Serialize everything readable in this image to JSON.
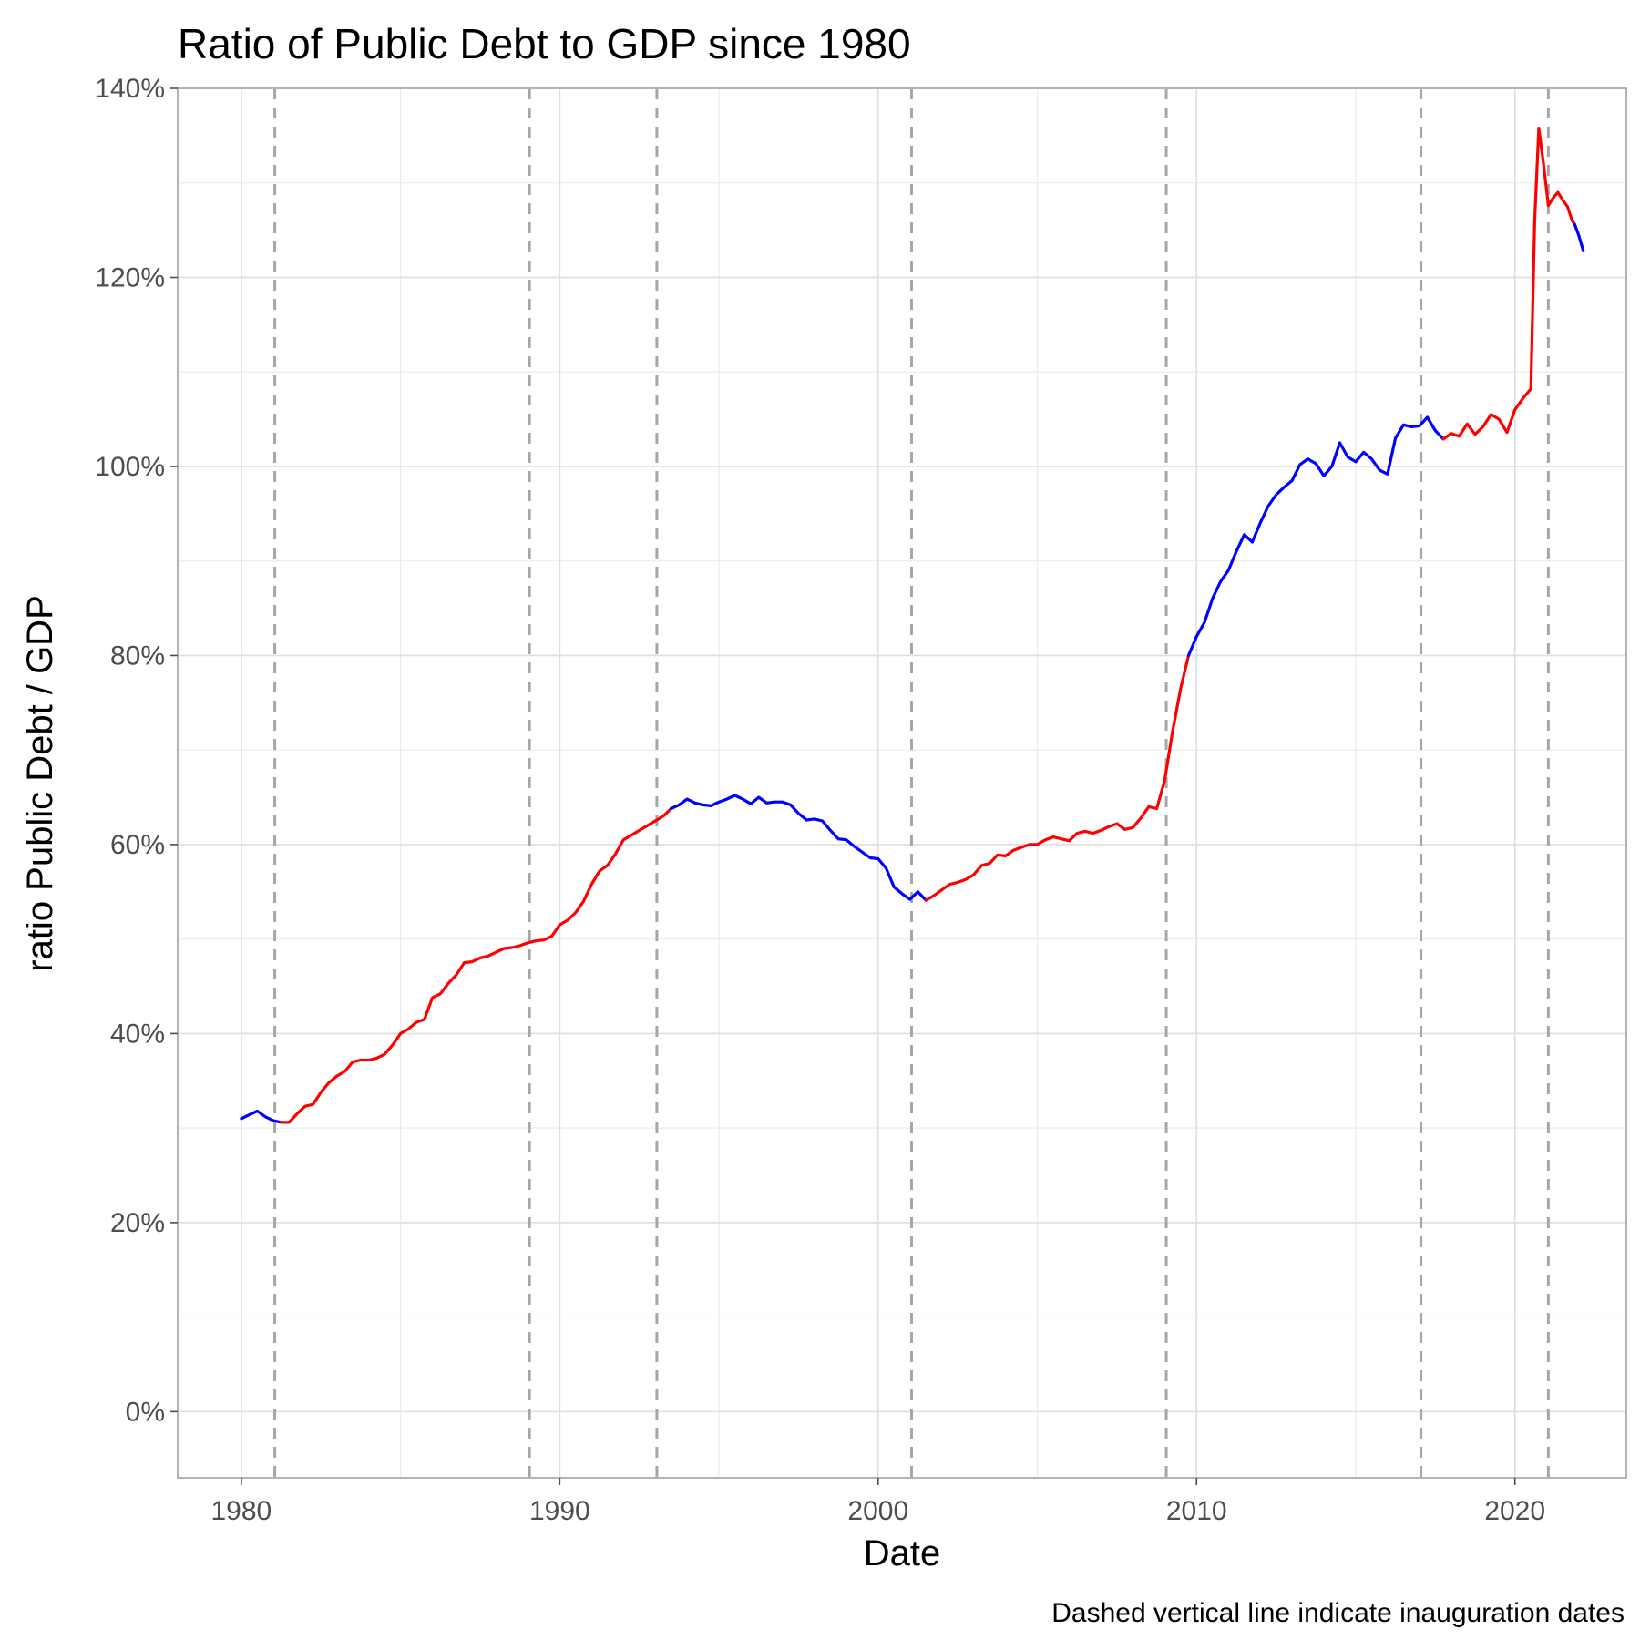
{
  "chart_data": {
    "type": "line",
    "title": "Ratio of Public Debt to GDP since 1980",
    "xlabel": "Date",
    "ylabel": "ratio Public Debt / GDP",
    "caption": "Dashed vertical line indicate inauguration dates",
    "xlim": [
      1978,
      2023.5
    ],
    "ylim": [
      -7,
      140
    ],
    "x_ticks": [
      1980,
      1990,
      2000,
      2010,
      2020
    ],
    "y_ticks": [
      0,
      20,
      40,
      60,
      80,
      100,
      120,
      140
    ],
    "y_tick_labels": [
      "0%",
      "20%",
      "40%",
      "60%",
      "80%",
      "100%",
      "120%",
      "140%"
    ],
    "grid": true,
    "vlines": [
      1981.05,
      1989.05,
      1993.05,
      2001.05,
      2009.05,
      2017.05,
      2021.05
    ],
    "colors": {
      "blue": "#0000ff",
      "red": "#ff0000",
      "vline": "#a6a6a6"
    },
    "series": [
      {
        "color": "blue",
        "points": [
          [
            1980.0,
            31.0
          ],
          [
            1980.25,
            31.4
          ],
          [
            1980.5,
            31.8
          ],
          [
            1980.75,
            31.2
          ],
          [
            1981.0,
            30.8
          ],
          [
            1981.25,
            30.6
          ]
        ]
      },
      {
        "color": "red",
        "points": [
          [
            1981.25,
            30.6
          ],
          [
            1981.5,
            30.6
          ],
          [
            1981.75,
            31.5
          ],
          [
            1982.0,
            32.3
          ],
          [
            1982.25,
            32.5
          ],
          [
            1982.5,
            33.8
          ],
          [
            1982.75,
            34.8
          ],
          [
            1983.0,
            35.5
          ],
          [
            1983.25,
            36.0
          ],
          [
            1983.5,
            37.0
          ],
          [
            1983.75,
            37.2
          ],
          [
            1984.0,
            37.2
          ],
          [
            1984.25,
            37.4
          ],
          [
            1984.5,
            37.8
          ],
          [
            1984.75,
            38.8
          ],
          [
            1985.0,
            40.0
          ],
          [
            1985.25,
            40.5
          ],
          [
            1985.5,
            41.2
          ],
          [
            1985.75,
            41.5
          ],
          [
            1986.0,
            43.8
          ],
          [
            1986.25,
            44.2
          ],
          [
            1986.5,
            45.3
          ],
          [
            1986.75,
            46.2
          ],
          [
            1987.0,
            47.5
          ],
          [
            1987.25,
            47.6
          ],
          [
            1987.5,
            48.0
          ],
          [
            1987.75,
            48.2
          ],
          [
            1988.0,
            48.6
          ],
          [
            1988.25,
            49.0
          ],
          [
            1988.5,
            49.1
          ],
          [
            1988.75,
            49.3
          ],
          [
            1989.0,
            49.6
          ],
          [
            1989.25,
            49.8
          ],
          [
            1989.5,
            49.9
          ],
          [
            1989.75,
            50.3
          ],
          [
            1990.0,
            51.5
          ],
          [
            1990.25,
            52.0
          ],
          [
            1990.5,
            52.8
          ],
          [
            1990.75,
            54.0
          ],
          [
            1991.0,
            55.8
          ],
          [
            1991.25,
            57.2
          ],
          [
            1991.5,
            57.8
          ],
          [
            1991.75,
            59.0
          ],
          [
            1992.0,
            60.5
          ],
          [
            1992.25,
            61.0
          ],
          [
            1992.5,
            61.5
          ],
          [
            1992.75,
            62.0
          ],
          [
            1993.0,
            62.5
          ],
          [
            1993.25,
            63.0
          ],
          [
            1993.5,
            63.8
          ]
        ]
      },
      {
        "color": "blue",
        "points": [
          [
            1993.5,
            63.8
          ],
          [
            1993.75,
            64.2
          ],
          [
            1994.0,
            64.8
          ],
          [
            1994.25,
            64.4
          ],
          [
            1994.5,
            64.2
          ],
          [
            1994.75,
            64.1
          ],
          [
            1995.0,
            64.5
          ],
          [
            1995.25,
            64.8
          ],
          [
            1995.5,
            65.2
          ],
          [
            1995.75,
            64.8
          ],
          [
            1996.0,
            64.3
          ],
          [
            1996.25,
            65.0
          ],
          [
            1996.5,
            64.4
          ],
          [
            1996.75,
            64.5
          ],
          [
            1997.0,
            64.5
          ],
          [
            1997.25,
            64.2
          ],
          [
            1997.5,
            63.3
          ],
          [
            1997.75,
            62.6
          ],
          [
            1998.0,
            62.7
          ],
          [
            1998.25,
            62.5
          ],
          [
            1998.5,
            61.5
          ],
          [
            1998.75,
            60.6
          ],
          [
            1999.0,
            60.5
          ],
          [
            1999.25,
            59.8
          ],
          [
            1999.5,
            59.2
          ],
          [
            1999.75,
            58.6
          ],
          [
            2000.0,
            58.5
          ],
          [
            2000.25,
            57.5
          ],
          [
            2000.5,
            55.5
          ],
          [
            2000.75,
            54.8
          ],
          [
            2001.0,
            54.2
          ],
          [
            2001.25,
            55.0
          ],
          [
            2001.5,
            54.1
          ]
        ]
      },
      {
        "color": "red",
        "points": [
          [
            2001.5,
            54.1
          ],
          [
            2001.75,
            54.6
          ],
          [
            2002.0,
            55.2
          ],
          [
            2002.25,
            55.8
          ],
          [
            2002.5,
            56.0
          ],
          [
            2002.75,
            56.3
          ],
          [
            2003.0,
            56.8
          ],
          [
            2003.25,
            57.8
          ],
          [
            2003.5,
            58.0
          ],
          [
            2003.75,
            58.9
          ],
          [
            2004.0,
            58.8
          ],
          [
            2004.25,
            59.4
          ],
          [
            2004.5,
            59.7
          ],
          [
            2004.75,
            60.0
          ],
          [
            2005.0,
            60.0
          ],
          [
            2005.25,
            60.5
          ],
          [
            2005.5,
            60.8
          ],
          [
            2005.75,
            60.6
          ],
          [
            2006.0,
            60.4
          ],
          [
            2006.25,
            61.2
          ],
          [
            2006.5,
            61.4
          ],
          [
            2006.75,
            61.2
          ],
          [
            2007.0,
            61.5
          ],
          [
            2007.25,
            61.9
          ],
          [
            2007.5,
            62.2
          ],
          [
            2007.75,
            61.6
          ],
          [
            2008.0,
            61.8
          ],
          [
            2008.25,
            62.8
          ],
          [
            2008.5,
            64.0
          ],
          [
            2008.75,
            63.8
          ],
          [
            2009.0,
            66.8
          ],
          [
            2009.25,
            72.0
          ],
          [
            2009.5,
            76.5
          ],
          [
            2009.75,
            80.0
          ]
        ]
      },
      {
        "color": "blue",
        "points": [
          [
            2009.75,
            80.0
          ],
          [
            2010.0,
            82.0
          ],
          [
            2010.25,
            83.5
          ],
          [
            2010.5,
            86.0
          ],
          [
            2010.75,
            87.8
          ],
          [
            2011.0,
            89.0
          ],
          [
            2011.25,
            91.0
          ],
          [
            2011.5,
            92.8
          ],
          [
            2011.75,
            92.0
          ],
          [
            2012.0,
            94.0
          ],
          [
            2012.25,
            95.8
          ],
          [
            2012.5,
            97.0
          ],
          [
            2012.75,
            97.8
          ],
          [
            2013.0,
            98.5
          ],
          [
            2013.25,
            100.2
          ],
          [
            2013.5,
            100.8
          ],
          [
            2013.75,
            100.3
          ],
          [
            2014.0,
            99.0
          ],
          [
            2014.25,
            100.0
          ],
          [
            2014.5,
            102.5
          ],
          [
            2014.75,
            101.0
          ],
          [
            2015.0,
            100.5
          ],
          [
            2015.25,
            101.5
          ],
          [
            2015.5,
            100.8
          ],
          [
            2015.75,
            99.6
          ],
          [
            2016.0,
            99.2
          ],
          [
            2016.25,
            103.0
          ],
          [
            2016.5,
            104.4
          ],
          [
            2016.75,
            104.2
          ],
          [
            2017.0,
            104.3
          ],
          [
            2017.25,
            105.2
          ],
          [
            2017.5,
            103.8
          ],
          [
            2017.75,
            102.9
          ]
        ]
      },
      {
        "color": "red",
        "points": [
          [
            2017.75,
            102.9
          ],
          [
            2018.0,
            103.5
          ],
          [
            2018.25,
            103.2
          ],
          [
            2018.5,
            104.5
          ],
          [
            2018.75,
            103.4
          ],
          [
            2019.0,
            104.2
          ],
          [
            2019.25,
            105.5
          ],
          [
            2019.5,
            105.0
          ],
          [
            2019.75,
            103.6
          ],
          [
            2020.0,
            106.0
          ],
          [
            2020.25,
            107.2
          ],
          [
            2020.5,
            108.2
          ],
          [
            2020.62,
            126.0
          ],
          [
            2020.75,
            135.8
          ],
          [
            2020.9,
            132.0
          ],
          [
            2021.05,
            127.6
          ],
          [
            2021.2,
            128.4
          ],
          [
            2021.35,
            129.0
          ],
          [
            2021.5,
            128.2
          ],
          [
            2021.65,
            127.5
          ],
          [
            2021.8,
            126.0
          ],
          [
            2021.88,
            125.6
          ]
        ]
      },
      {
        "color": "blue",
        "points": [
          [
            2021.88,
            125.6
          ],
          [
            2022.0,
            124.5
          ],
          [
            2022.15,
            122.8
          ]
        ]
      }
    ]
  }
}
